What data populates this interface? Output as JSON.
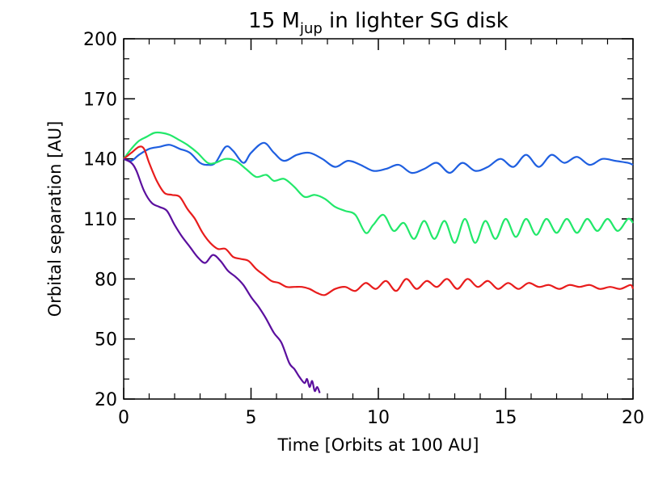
{
  "chart_data": {
    "type": "line",
    "title": "15 M",
    "title_subscript": "jup",
    "title_suffix": " in lighter SG disk",
    "xlabel": "Time [Orbits at 100 AU]",
    "ylabel": "Orbital separation [AU]",
    "xlim": [
      0,
      20
    ],
    "ylim": [
      20,
      200
    ],
    "xticks": [
      0,
      5,
      10,
      15,
      20
    ],
    "yticks": [
      20,
      50,
      80,
      110,
      140,
      170,
      200
    ],
    "grid": false,
    "legend": "none",
    "series": [
      {
        "color": "#1f5fe0",
        "x": [
          0,
          0.3,
          0.6,
          1.0,
          1.4,
          1.8,
          2.2,
          2.6,
          3.0,
          3.3,
          3.6,
          4.0,
          4.3,
          4.7,
          5.0,
          5.5,
          5.9,
          6.3,
          6.8,
          7.3,
          7.8,
          8.3,
          8.8,
          9.3,
          9.8,
          10.3,
          10.8,
          11.3,
          11.8,
          12.3,
          12.8,
          13.3,
          13.8,
          14.3,
          14.8,
          15.3,
          15.8,
          16.3,
          16.8,
          17.3,
          17.8,
          18.3,
          18.8,
          19.3,
          19.8,
          20.0
        ],
        "y": [
          140,
          139,
          142,
          145,
          146,
          147,
          145,
          143,
          138,
          137,
          138,
          146,
          144,
          138,
          143,
          148,
          143,
          139,
          142,
          143,
          140,
          136,
          139,
          137,
          134,
          135,
          137,
          133,
          135,
          138,
          133,
          138,
          134,
          136,
          140,
          136,
          142,
          136,
          142,
          138,
          141,
          137,
          140,
          139,
          138,
          137
        ]
      },
      {
        "color": "#22e86a",
        "x": [
          0,
          0.3,
          0.6,
          0.9,
          1.2,
          1.5,
          1.8,
          2.1,
          2.5,
          2.9,
          3.3,
          3.6,
          4.0,
          4.4,
          4.8,
          5.2,
          5.6,
          5.9,
          6.3,
          6.7,
          7.1,
          7.5,
          7.9,
          8.3,
          8.7,
          9.1,
          9.5,
          9.8,
          10.2,
          10.6,
          11.0,
          11.4,
          11.8,
          12.2,
          12.6,
          13.0,
          13.4,
          13.8,
          14.2,
          14.6,
          15.0,
          15.4,
          15.8,
          16.2,
          16.6,
          17.0,
          17.4,
          17.8,
          18.2,
          18.6,
          19.0,
          19.4,
          19.8,
          20.0
        ],
        "y": [
          140,
          145,
          149,
          151,
          153,
          153,
          152,
          150,
          147,
          143,
          138,
          138,
          140,
          139,
          135,
          131,
          132,
          129,
          130,
          126,
          121,
          122,
          120,
          116,
          114,
          112,
          103,
          107,
          112,
          104,
          108,
          100,
          109,
          100,
          109,
          98,
          110,
          98,
          109,
          100,
          110,
          101,
          110,
          102,
          110,
          103,
          110,
          103,
          110,
          104,
          110,
          104,
          110,
          108
        ]
      },
      {
        "color": "#e81c1c",
        "x": [
          0,
          0.3,
          0.6,
          0.8,
          1.0,
          1.3,
          1.6,
          1.9,
          2.2,
          2.5,
          2.8,
          3.1,
          3.4,
          3.7,
          4.0,
          4.3,
          4.6,
          4.9,
          5.2,
          5.5,
          5.8,
          6.1,
          6.4,
          6.7,
          7.0,
          7.3,
          7.6,
          7.9,
          8.3,
          8.7,
          9.1,
          9.5,
          9.9,
          10.3,
          10.7,
          11.1,
          11.5,
          11.9,
          12.3,
          12.7,
          13.1,
          13.5,
          13.9,
          14.3,
          14.7,
          15.1,
          15.5,
          15.9,
          16.3,
          16.7,
          17.1,
          17.5,
          17.9,
          18.3,
          18.7,
          19.1,
          19.5,
          19.9,
          20.0
        ],
        "y": [
          140,
          143,
          146,
          145,
          138,
          129,
          123,
          122,
          121,
          115,
          110,
          103,
          98,
          95,
          95,
          91,
          90,
          89,
          85,
          82,
          79,
          78,
          76,
          76,
          76,
          75,
          73,
          72,
          75,
          76,
          74,
          78,
          75,
          79,
          74,
          80,
          75,
          79,
          76,
          80,
          75,
          80,
          76,
          79,
          75,
          78,
          75,
          78,
          76,
          77,
          75,
          77,
          76,
          77,
          75,
          76,
          75,
          77,
          75
        ]
      },
      {
        "color": "#5b0f9e",
        "x": [
          0,
          0.3,
          0.5,
          0.8,
          1.1,
          1.4,
          1.7,
          2.0,
          2.3,
          2.6,
          2.9,
          3.2,
          3.5,
          3.8,
          4.1,
          4.4,
          4.7,
          5.0,
          5.3,
          5.6,
          5.9,
          6.2,
          6.5,
          6.7,
          6.9,
          7.1,
          7.2,
          7.3,
          7.4,
          7.5,
          7.6,
          7.7
        ],
        "y": [
          140,
          138,
          134,
          124,
          118,
          116,
          114,
          107,
          101,
          96,
          91,
          88,
          92,
          89,
          84,
          81,
          77,
          71,
          66,
          60,
          53,
          48,
          38,
          35,
          31,
          28,
          30,
          26,
          29,
          24,
          26,
          23
        ]
      }
    ]
  }
}
